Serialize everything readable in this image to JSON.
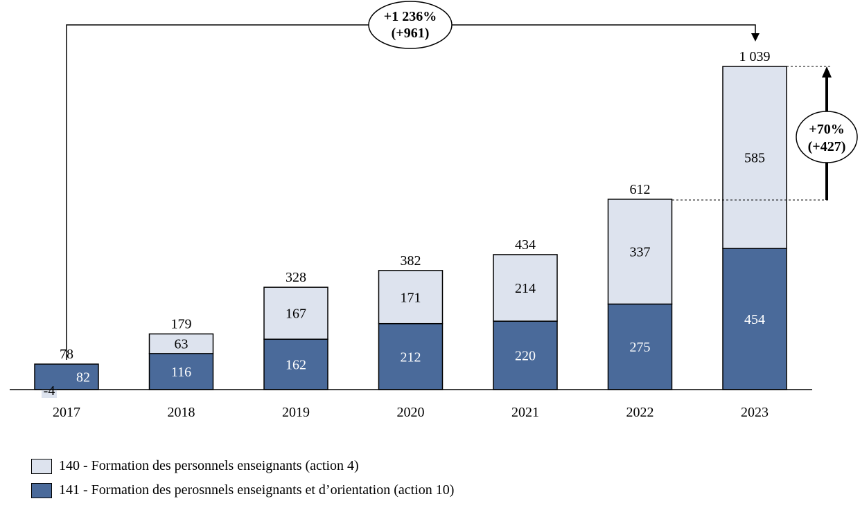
{
  "colors": {
    "series140": "#dde3ee",
    "series141": "#4a6a9a",
    "outline": "#000000"
  },
  "chart_data": {
    "type": "bar",
    "stacked": true,
    "categories": [
      "2017",
      "2018",
      "2019",
      "2020",
      "2021",
      "2022",
      "2023"
    ],
    "series": [
      {
        "name": "141 - Formation des perosnnels enseignants et d’orientation (action 10)",
        "values": [
          82,
          116,
          162,
          212,
          220,
          275,
          454
        ]
      },
      {
        "name": "140 - Formation des personnels enseignants (action 4)",
        "values": [
          -4,
          63,
          167,
          171,
          214,
          337,
          585
        ]
      }
    ],
    "totals": [
      "78",
      "179",
      "328",
      "382",
      "434",
      "612",
      "1 039"
    ],
    "segment_labels_dark": [
      "82",
      "116",
      "162",
      "212",
      "220",
      "275",
      "454"
    ],
    "segment_labels_light": [
      "-4",
      "63",
      "167",
      "171",
      "214",
      "337",
      "585"
    ],
    "ylim": [
      -10,
      1039
    ],
    "grid": false,
    "legend_position": "bottom-left",
    "annotations": {
      "growth_total_line1": "+1 236%",
      "growth_total_line2": "(+961)",
      "growth_last_line1": "+70%",
      "growth_last_line2": "(+427)"
    }
  }
}
